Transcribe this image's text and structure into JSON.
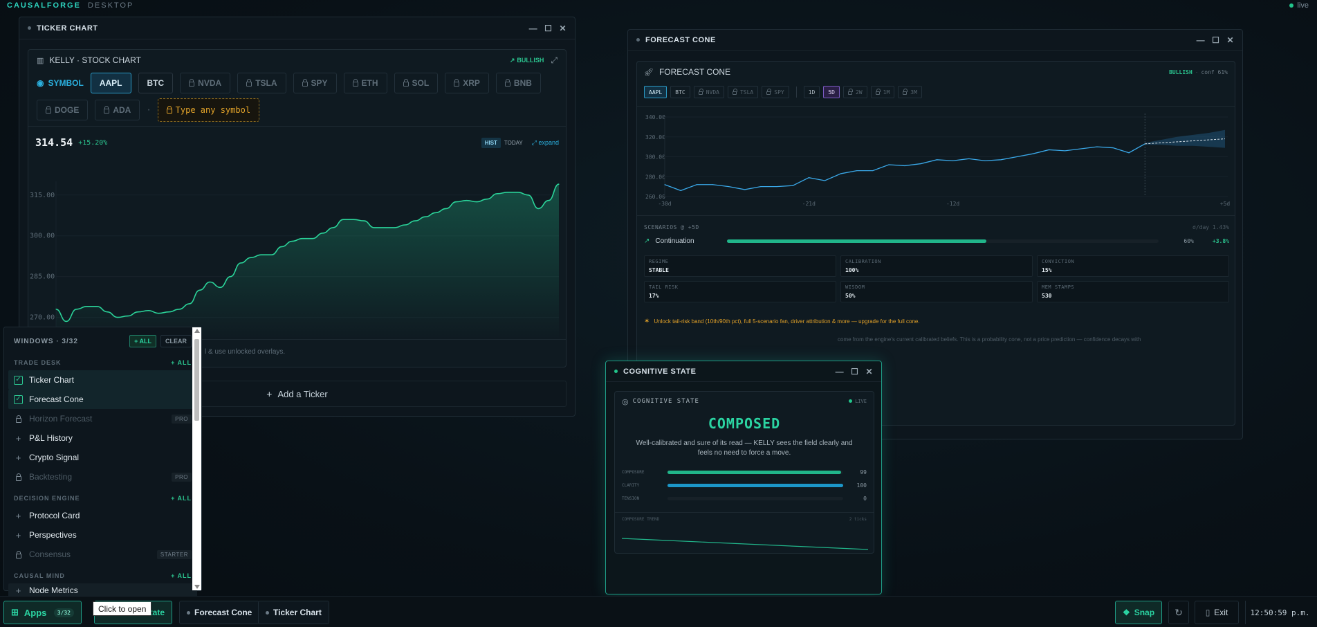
{
  "topbar": {
    "brand": "CAUSALFORGE",
    "mode": "DESKTOP",
    "live": "live"
  },
  "ticker": {
    "title": "TICKER CHART",
    "panel_title": "KELLY · STOCK CHART",
    "bias": "BULLISH",
    "symbol_label": "SYMBOL",
    "symbols": [
      "AAPL",
      "BTC",
      "NVDA",
      "TSLA",
      "SPY",
      "ETH",
      "SOL",
      "XRP",
      "BNB",
      "DOGE",
      "ADA"
    ],
    "type_any": "Type any symbol",
    "price": "314.54",
    "change": "+15.20%",
    "hist": "HIST",
    "today": "TODAY",
    "expand": "expand",
    "footer_hint": "l & use unlocked overlays.",
    "add_ticker": "Add a Ticker"
  },
  "chart_data": [
    {
      "type": "area",
      "title": "",
      "ylim": [
        262,
        318
      ],
      "yticks": [
        "315.00",
        "300.00",
        "285.00",
        "270.00"
      ],
      "ytick_values": [
        315,
        300,
        285,
        270
      ],
      "values": [
        273,
        268.5,
        273,
        274,
        274,
        272,
        270,
        270.5,
        272,
        272.5,
        271.5,
        272,
        273,
        275,
        280,
        283,
        281,
        285,
        290,
        292,
        293,
        293,
        296,
        298,
        299,
        299,
        301,
        303,
        306,
        306,
        305.5,
        303,
        303,
        303,
        304,
        305.5,
        307,
        308.5,
        310,
        312.5,
        313,
        312.5,
        313.5,
        315.5,
        316,
        316,
        315,
        310,
        313,
        319
      ]
    },
    {
      "type": "line",
      "title": "",
      "ylim": [
        260,
        340
      ],
      "yticks": [
        "340.00",
        "320.00",
        "300.00",
        "280.00",
        "260.00"
      ],
      "ytick_values": [
        340,
        320,
        300,
        280,
        260
      ],
      "xticks": [
        "-30d",
        "-21d",
        "-12d",
        "+5d"
      ],
      "values": [
        272,
        266,
        272,
        272,
        270,
        267,
        270,
        270,
        271,
        279,
        276,
        283,
        286,
        286,
        292,
        291,
        293,
        297,
        296,
        298,
        296,
        297,
        300,
        303,
        307,
        306,
        308,
        310,
        309,
        304,
        313
      ],
      "forecast": [
        313,
        314,
        315,
        316,
        317,
        318
      ],
      "forecast_upper": [
        314,
        317,
        320,
        322,
        324,
        327
      ],
      "forecast_lower": [
        312,
        312,
        311,
        311,
        310,
        309
      ]
    },
    {
      "type": "line",
      "title": "",
      "values": [
        100,
        96,
        92,
        88,
        84,
        80,
        76,
        72,
        68
      ]
    }
  ],
  "forecast": {
    "title": "FORECAST CONE",
    "panel_title": "FORECAST CONE",
    "bias": "BULLISH",
    "conf": "conf 61%",
    "symbols": [
      "AAPL",
      "BTC",
      "NVDA",
      "TSLA",
      "SPY"
    ],
    "horizons": [
      "1D",
      "5D",
      "2W",
      "1M",
      "3M"
    ],
    "scenarios_label": "SCENARIOS @ +5D",
    "sigma": "σ/day 1.43%",
    "scenario": {
      "name": "Continuation",
      "pct": "60%",
      "move": "+3.8%",
      "fill": 0.6
    },
    "metrics": [
      {
        "k": "REGIME",
        "v": "STABLE"
      },
      {
        "k": "CALIBRATION",
        "v": "100%"
      },
      {
        "k": "CONVICTION",
        "v": "15%"
      },
      {
        "k": "TAIL RISK",
        "v": "17%"
      },
      {
        "k": "WISDOM",
        "v": "50%"
      },
      {
        "k": "MEM STAMPS",
        "v": "530"
      }
    ],
    "upgrade": "Unlock tail-risk band (10th/90th pct), full 5-scenario fan, driver attribution & more — upgrade for the full cone.",
    "disclaimer": "come from the engine's current calibrated beliefs. This is a probability cone, not a price prediction — confidence decays with"
  },
  "cog": {
    "title": "COGNITIVE STATE",
    "panel_title": "COGNITIVE STATE",
    "live": "LIVE",
    "state": "COMPOSED",
    "desc": "Well-calibrated and sure of its read — KELLY sees the field clearly and feels no need to force a move.",
    "bars": [
      {
        "name": "COMPOSURE",
        "value": "99",
        "fill": 0.99,
        "color": "#21b58a"
      },
      {
        "name": "CLARITY",
        "value": "100",
        "fill": 1.0,
        "color": "#1c97c9"
      },
      {
        "name": "TENSION",
        "value": "0",
        "fill": 0,
        "color": "#444"
      }
    ],
    "trend_label": "COMPOSURE TREND",
    "trend_ticks": "2 ticks"
  },
  "sidebar": {
    "title": "WINDOWS · 3/32",
    "all": "+ ALL",
    "clear": "CLEAR",
    "sections": [
      {
        "name": "TRADE DESK",
        "all": "+ ALL"
      },
      {
        "name": "DECISION ENGINE",
        "all": "+ ALL"
      },
      {
        "name": "CAUSAL MIND",
        "all": "+ ALL"
      }
    ],
    "items": [
      {
        "label": "Ticker Chart"
      },
      {
        "label": "Forecast Cone"
      },
      {
        "label": "Horizon Forecast",
        "badge": "PRO"
      },
      {
        "label": "P&L History"
      },
      {
        "label": "Crypto Signal"
      },
      {
        "label": "Backtesting",
        "badge": "PRO"
      },
      {
        "label": "Protocol Card"
      },
      {
        "label": "Perspectives"
      },
      {
        "label": "Consensus",
        "badge": "STARTER"
      },
      {
        "label": "Node Metrics"
      }
    ]
  },
  "taskbar": {
    "apps": "Apps",
    "apps_count": "3/32",
    "tooltip": "Click to open",
    "hidden_task": "tate",
    "tasks": [
      "Forecast Cone",
      "Ticker Chart"
    ],
    "snap": "Snap",
    "exit": "Exit",
    "clock": "12:50:59 p.m."
  }
}
